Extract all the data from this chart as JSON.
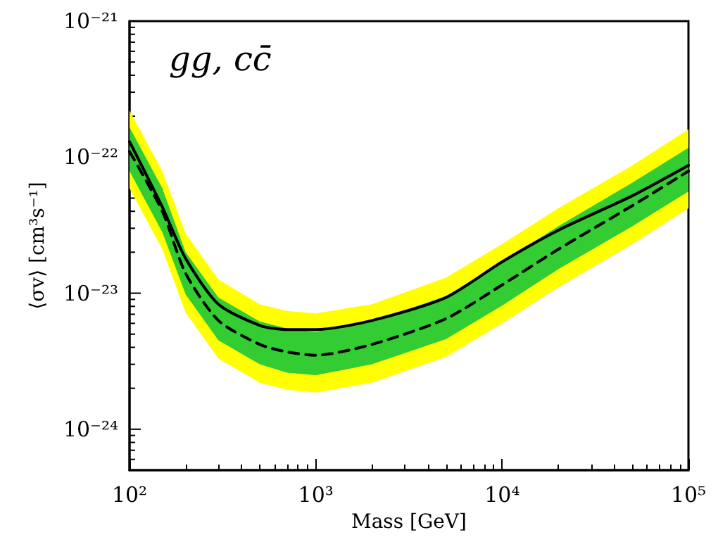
{
  "chart_data": {
    "type": "line",
    "xlabel": "Mass [GeV]",
    "ylabel": "⟨σv⟩ [cm³s⁻¹]",
    "annotations": [
      "gg, cc̄"
    ],
    "log": "xy",
    "grid": false,
    "marker": "none",
    "xlim": [
      100,
      100000
    ],
    "ylim": [
      5e-25,
      1e-21
    ],
    "xticks": [
      {
        "value": 100,
        "label": "10²"
      },
      {
        "value": 1000,
        "label": "10³"
      },
      {
        "value": 10000,
        "label": "10⁴"
      },
      {
        "value": 100000,
        "label": "10⁵"
      }
    ],
    "yticks": [
      {
        "value": 1e-24,
        "label": "10⁻²⁴"
      },
      {
        "value": 1e-23,
        "label": "10⁻²³"
      },
      {
        "value": 1e-22,
        "label": "10⁻²²"
      },
      {
        "value": 1e-21,
        "label": "10⁻²¹"
      }
    ],
    "x": [
      100,
      150,
      200,
      300,
      500,
      700,
      1000,
      2000,
      5000,
      10000,
      20000,
      50000,
      100000
    ],
    "series": [
      {
        "color": "#ffff00",
        "values": [
          null,
          null,
          null,
          null,
          null,
          null,
          null,
          null,
          null,
          null,
          null,
          null,
          null
        ],
        "lower": [
          5.9e-23,
          2.1e-23,
          7.2e-24,
          3.3e-24,
          2.2e-24,
          1.95e-24,
          1.86e-24,
          2.2e-24,
          3.4e-24,
          6e-24,
          1.1e-23,
          2.3e-23,
          4.2e-23
        ],
        "upper": [
          2.2e-22,
          7.9e-23,
          2.75e-23,
          1.26e-23,
          8.3e-24,
          7.4e-24,
          7.1e-24,
          8.3e-24,
          1.3e-23,
          2.3e-23,
          4.2e-23,
          8.7e-23,
          1.6e-22
        ]
      },
      {
        "color": "#33cc33",
        "values": [
          null,
          null,
          null,
          null,
          null,
          null,
          null,
          null,
          null,
          null,
          null,
          null,
          null
        ],
        "lower": [
          7.9e-23,
          2.8e-23,
          9.8e-24,
          4.5e-24,
          3e-24,
          2.6e-24,
          2.5e-24,
          3e-24,
          4.6e-24,
          8.1e-24,
          1.5e-23,
          3.1e-23,
          5.6e-23
        ],
        "upper": [
          1.66e-22,
          5.9e-23,
          2e-23,
          9.3e-24,
          6.2e-24,
          5.5e-24,
          5.2e-24,
          6.2e-24,
          9.5e-24,
          1.7e-23,
          3.1e-23,
          6.5e-23,
          1.17e-22
        ]
      },
      {
        "color": "#000000",
        "line_style": "dashed",
        "values": [
          1.1e-22,
          4e-23,
          1.4e-23,
          6.3e-24,
          4.2e-24,
          3.7e-24,
          3.5e-24,
          4.2e-24,
          6.5e-24,
          1.15e-23,
          2.1e-23,
          4.4e-23,
          7.9e-23
        ]
      },
      {
        "color": "#000000",
        "line_style": "solid",
        "values": [
          1.3e-22,
          4.3e-23,
          1.8e-23,
          8.3e-24,
          5.8e-24,
          5.4e-24,
          5.4e-24,
          6.3e-24,
          9.3e-24,
          1.7e-23,
          2.9e-23,
          5.2e-23,
          8.7e-23
        ]
      }
    ]
  }
}
